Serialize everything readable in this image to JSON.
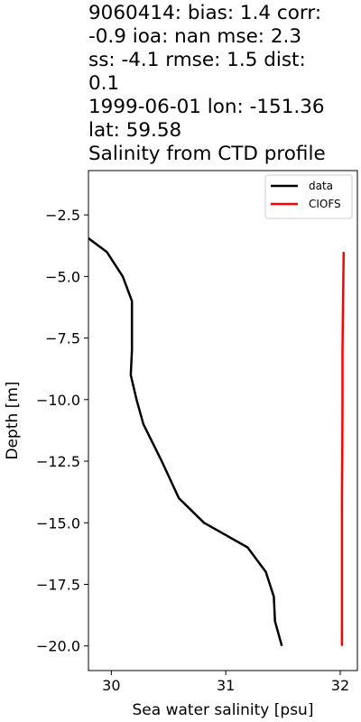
{
  "title_lines": [
    "9060414: bias: 1.4  corr:",
    "-0.9  ioa: nan  mse: 2.3",
    "ss: -4.1  rmse: 1.5  dist:",
    "0.1",
    "1999-06-01 lon: -151.36",
    "lat: 59.58",
    "Salinity from CTD profile"
  ],
  "chart_data": {
    "type": "line",
    "xlabel": "Sea water salinity [psu]",
    "ylabel": "Depth [m]",
    "xlim": [
      29.8,
      32.15
    ],
    "ylim": [
      -21.0,
      -0.7
    ],
    "xticks": [
      30,
      31,
      32
    ],
    "yticks": [
      -2.5,
      -5.0,
      -7.5,
      -10.0,
      -12.5,
      -15.0,
      -17.5,
      -20.0
    ],
    "legend_position": "upper right",
    "series": [
      {
        "name": "data",
        "color": "#000000",
        "x": [
          29.33,
          29.52,
          29.67,
          29.96,
          30.1,
          30.18,
          30.18,
          30.18,
          30.17,
          30.22,
          30.28,
          30.44,
          30.59,
          30.81,
          31.19,
          31.35,
          31.42,
          31.43,
          31.49
        ],
        "y": [
          -1.0,
          -2.0,
          -3.0,
          -4.0,
          -5.0,
          -6.0,
          -7.0,
          -8.0,
          -9.0,
          -10.0,
          -11.0,
          -12.5,
          -14.0,
          -15.0,
          -16.0,
          -17.0,
          -18.0,
          -19.0,
          -20.0
        ]
      },
      {
        "name": "CIOFS",
        "color": "#ff0000",
        "x": [
          32.03,
          32.025,
          32.02,
          32.02,
          32.018,
          32.015,
          32.015,
          32.015
        ],
        "y": [
          -4.0,
          -6.0,
          -8.0,
          -10.0,
          -12.0,
          -14.0,
          -17.0,
          -20.0
        ]
      }
    ]
  }
}
